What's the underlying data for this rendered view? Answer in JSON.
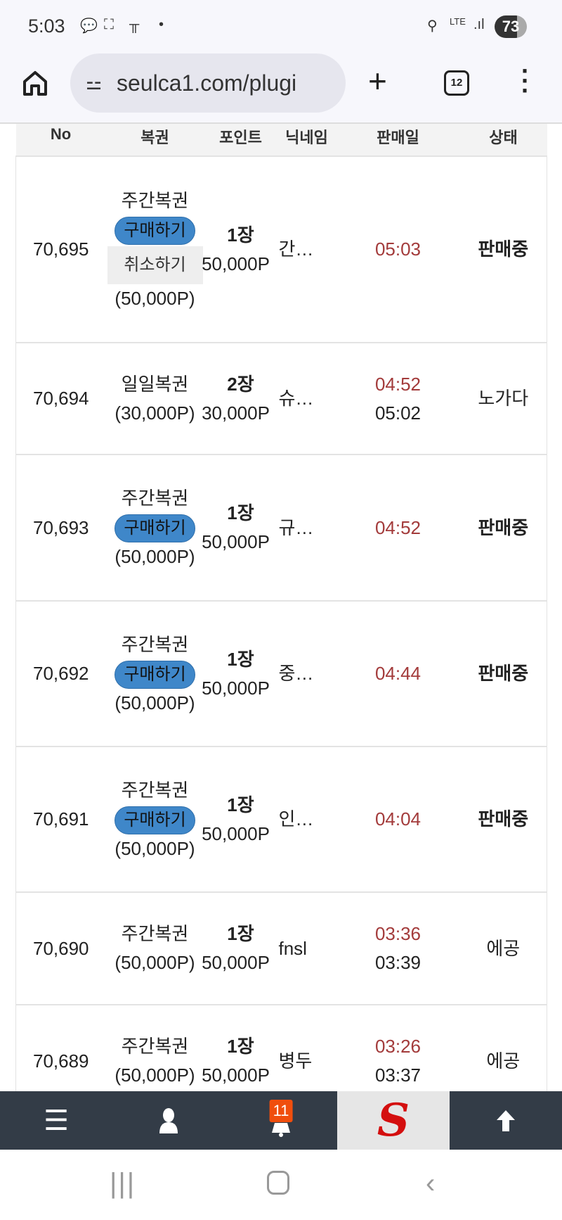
{
  "status_bar": {
    "time": "5:03",
    "battery": "73",
    "network": "LTE"
  },
  "browser": {
    "url": "seulca1.com/plugi",
    "tab_count": "12"
  },
  "table": {
    "headers": [
      "No",
      "복권",
      "포인트",
      "닉네임",
      "판매일",
      "상태"
    ],
    "buy_label": "구매하기",
    "cancel_label": "취소하기",
    "rows": [
      {
        "no": "70,695",
        "type": "주간복권",
        "buy": true,
        "cancel": true,
        "price": "(50,000P)",
        "count": "1장",
        "points": "50,000P",
        "nick": "간…",
        "sold": "05:03",
        "sold2": "",
        "status": "판매중",
        "status_bold": true
      },
      {
        "no": "70,694",
        "type": "일일복권",
        "buy": false,
        "cancel": false,
        "price": "(30,000P)",
        "count": "2장",
        "points": "30,000P",
        "nick": "슈…",
        "sold": "04:52",
        "sold2": "05:02",
        "status": "노가다",
        "status_bold": false
      },
      {
        "no": "70,693",
        "type": "주간복권",
        "buy": true,
        "cancel": false,
        "price": "(50,000P)",
        "count": "1장",
        "points": "50,000P",
        "nick": "규…",
        "sold": "04:52",
        "sold2": "",
        "status": "판매중",
        "status_bold": true
      },
      {
        "no": "70,692",
        "type": "주간복권",
        "buy": true,
        "cancel": false,
        "price": "(50,000P)",
        "count": "1장",
        "points": "50,000P",
        "nick": "중…",
        "sold": "04:44",
        "sold2": "",
        "status": "판매중",
        "status_bold": true
      },
      {
        "no": "70,691",
        "type": "주간복권",
        "buy": true,
        "cancel": false,
        "price": "(50,000P)",
        "count": "1장",
        "points": "50,000P",
        "nick": "인…",
        "sold": "04:04",
        "sold2": "",
        "status": "판매중",
        "status_bold": true
      },
      {
        "no": "70,690",
        "type": "주간복권",
        "buy": false,
        "cancel": false,
        "price": "(50,000P)",
        "count": "1장",
        "points": "50,000P",
        "nick": "fnsl",
        "sold": "03:36",
        "sold2": "03:39",
        "status": "에공",
        "status_bold": false
      },
      {
        "no": "70,689",
        "type": "주간복권",
        "buy": false,
        "cancel": false,
        "price": "(50,000P)",
        "count": "1장",
        "points": "50,000P",
        "nick": "병두",
        "sold": "03:26",
        "sold2": "03:37",
        "status": "에공",
        "status_bold": false
      }
    ]
  },
  "bottom_nav": {
    "notification_count": "11",
    "items": [
      "menu-icon",
      "user-icon",
      "bell-icon",
      "site-logo",
      "arrow-up-icon"
    ]
  },
  "colors": {
    "buy_button": "#3f87c9",
    "sold_time": "#a33b3b",
    "nav_bg": "#333c47",
    "badge": "#f04e0d"
  }
}
